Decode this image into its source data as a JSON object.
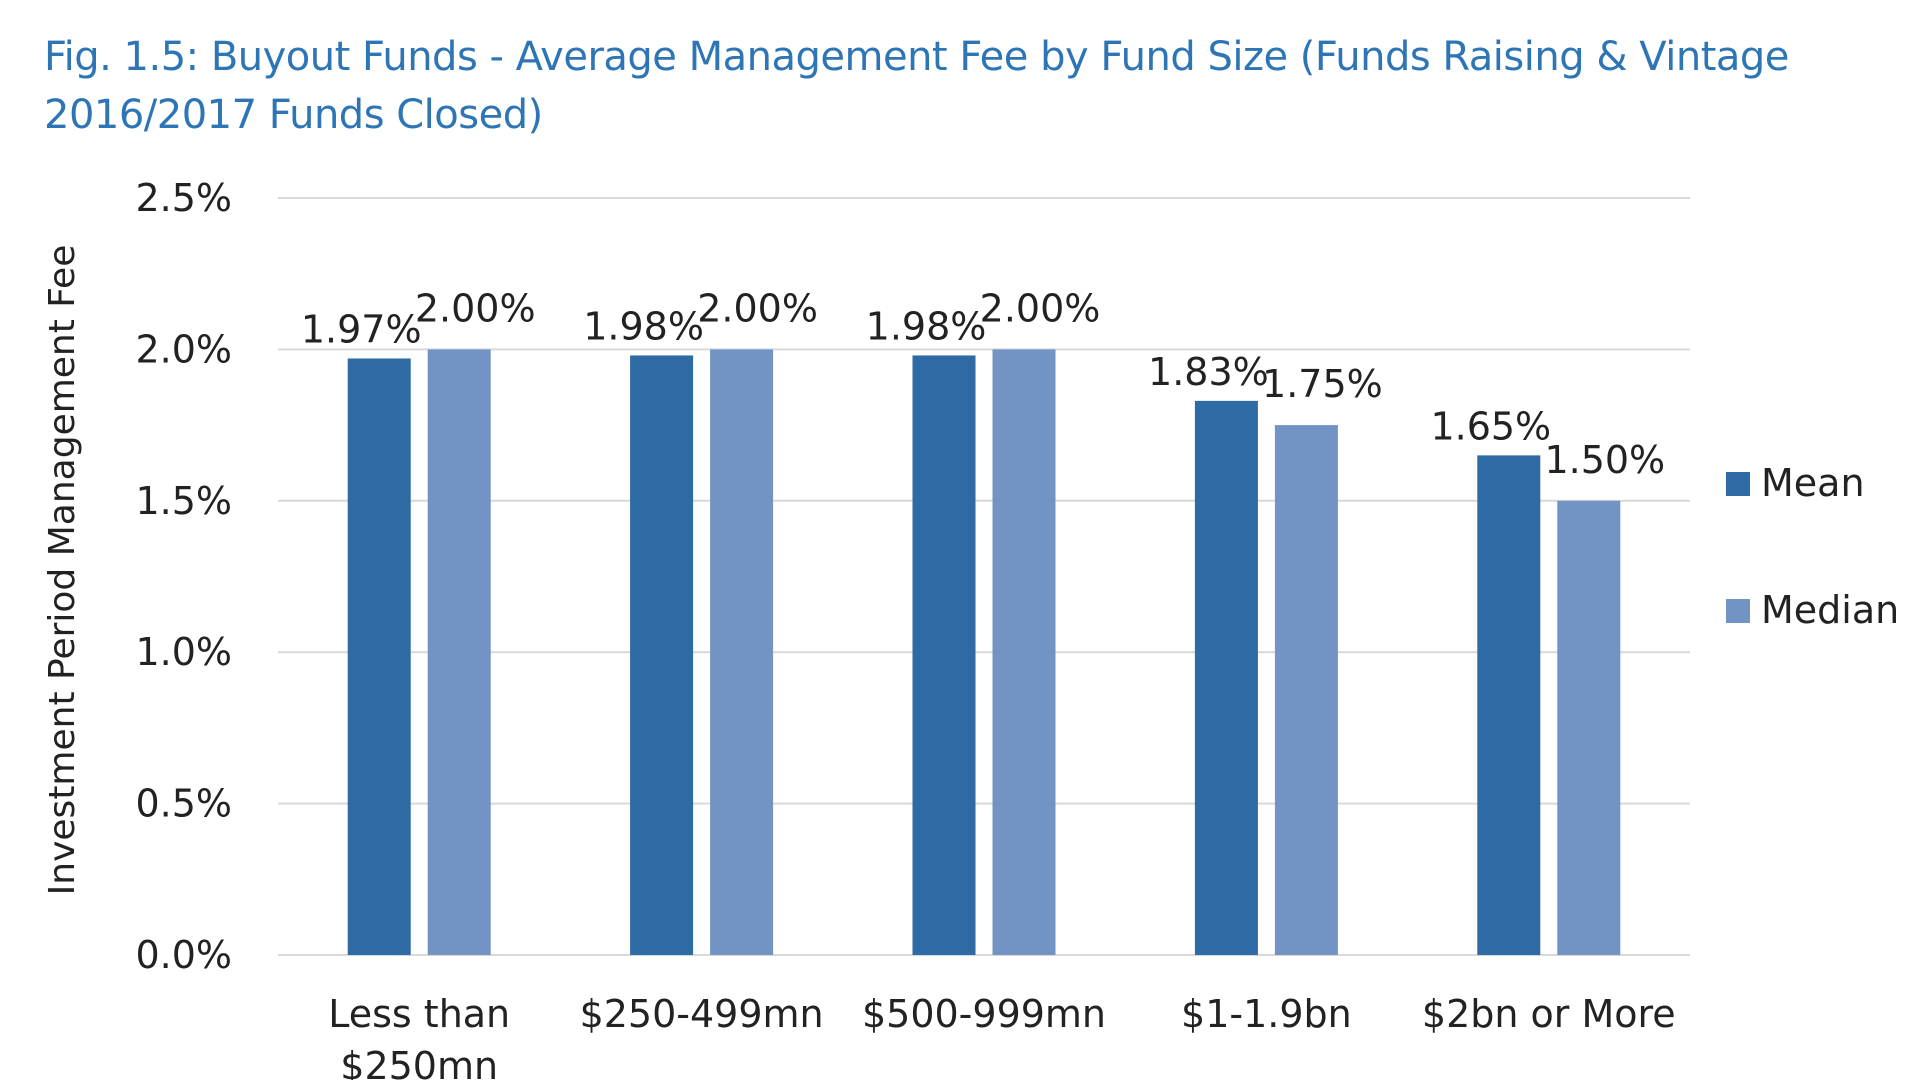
{
  "chart_data": {
    "type": "bar",
    "title": "Fig. 1.5: Buyout Funds - Average Management Fee by Fund Size (Funds Raising & Vintage 2016/2017 Funds Closed)",
    "xlabel": "",
    "ylabel": "Investment Period Management Fee",
    "categories": [
      [
        "Less than",
        "$250mn"
      ],
      [
        "$250-499mn"
      ],
      [
        "$500-999mn"
      ],
      [
        "$1-1.9bn"
      ],
      [
        "$2bn or More"
      ]
    ],
    "series": [
      {
        "name": "Mean",
        "color": "#2E6AA3",
        "values": [
          1.97,
          1.98,
          1.98,
          1.83,
          1.65
        ],
        "labels": [
          "1.97%",
          "1.98%",
          "1.98%",
          "1.83%",
          "1.65%"
        ]
      },
      {
        "name": "Median",
        "color": "#7393C4",
        "values": [
          2.0,
          2.0,
          2.0,
          1.75,
          1.5
        ],
        "labels": [
          "2.00%",
          "2.00%",
          "2.00%",
          "1.75%",
          "1.50%"
        ]
      }
    ],
    "ylim": [
      0,
      2.5
    ],
    "yticks": [
      {
        "value": 0,
        "label": "0.0%"
      },
      {
        "value": 0.5,
        "label": "0.5%"
      },
      {
        "value": 1.0,
        "label": "1.0%"
      },
      {
        "value": 1.5,
        "label": "1.5%"
      },
      {
        "value": 2.0,
        "label": "2.0%"
      },
      {
        "value": 2.5,
        "label": "2.5%"
      }
    ],
    "grid": true,
    "gridline_color": "#D9D9D9",
    "title_color": "#2E75B6",
    "legend": {
      "position": "right"
    }
  }
}
